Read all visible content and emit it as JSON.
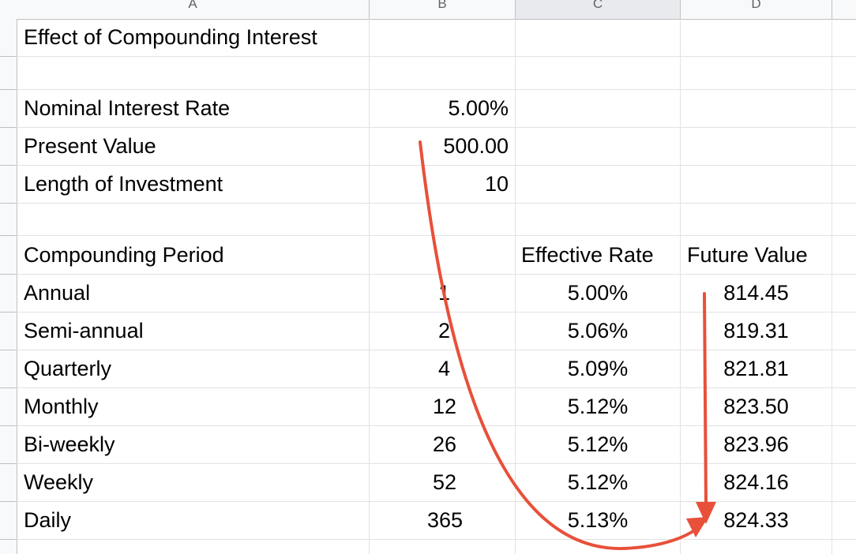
{
  "columns": [
    "A",
    "B",
    "C",
    "D"
  ],
  "title": "Effect of Compounding Interest",
  "inputs": [
    {
      "label": "Nominal Interest Rate",
      "value": "5.00%"
    },
    {
      "label": "Present Value",
      "value": "500.00"
    },
    {
      "label": "Length of Investment",
      "value": "10"
    }
  ],
  "table": {
    "headers": {
      "period": "Compounding Period",
      "rate": "Effective Rate",
      "fv": "Future Value"
    },
    "rows": [
      {
        "period": "Annual",
        "n": "1",
        "rate": "5.00%",
        "fv": "814.45"
      },
      {
        "period": "Semi-annual",
        "n": "2",
        "rate": "5.06%",
        "fv": "819.31"
      },
      {
        "period": "Quarterly",
        "n": "4",
        "rate": "5.09%",
        "fv": "821.81"
      },
      {
        "period": "Monthly",
        "n": "12",
        "rate": "5.12%",
        "fv": "823.50"
      },
      {
        "period": "Bi-weekly",
        "n": "26",
        "rate": "5.12%",
        "fv": "823.96"
      },
      {
        "period": "Weekly",
        "n": "52",
        "rate": "5.12%",
        "fv": "824.16"
      },
      {
        "period": "Daily",
        "n": "365",
        "rate": "5.13%",
        "fv": "824.33"
      }
    ]
  },
  "annotation_color": "#e8503a"
}
